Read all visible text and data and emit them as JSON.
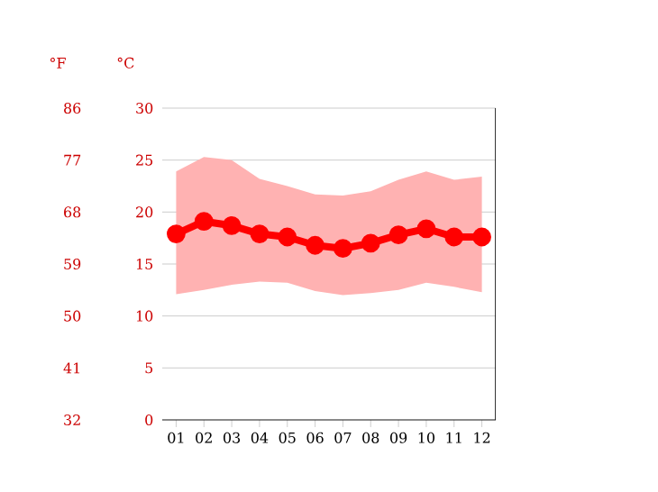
{
  "chart_data": {
    "type": "line",
    "ylabel": "°C",
    "y2label": "°F",
    "categories": [
      "01",
      "02",
      "03",
      "04",
      "05",
      "06",
      "07",
      "08",
      "09",
      "10",
      "11",
      "12"
    ],
    "series": [
      {
        "color": "#ff0000",
        "values": [
          17.9,
          19.1,
          18.7,
          17.9,
          17.6,
          16.8,
          16.5,
          17.0,
          17.8,
          18.4,
          17.6,
          17.6
        ],
        "lower": [
          12.1,
          12.5,
          13.0,
          13.3,
          13.2,
          12.4,
          12.0,
          12.2,
          12.5,
          13.2,
          12.8,
          12.3
        ],
        "upper": [
          23.9,
          25.3,
          25.0,
          23.2,
          22.5,
          21.7,
          21.6,
          22.0,
          23.1,
          23.9,
          23.1,
          23.4
        ]
      }
    ],
    "ylim": [
      0,
      30
    ],
    "yticks": [
      0,
      5,
      10,
      15,
      20,
      25,
      30
    ],
    "y2lim": [
      32,
      86
    ],
    "y2ticks": [
      32,
      41,
      50,
      59,
      68,
      77,
      86
    ],
    "grid": "y",
    "marker": "circle",
    "line_style": "solid"
  }
}
